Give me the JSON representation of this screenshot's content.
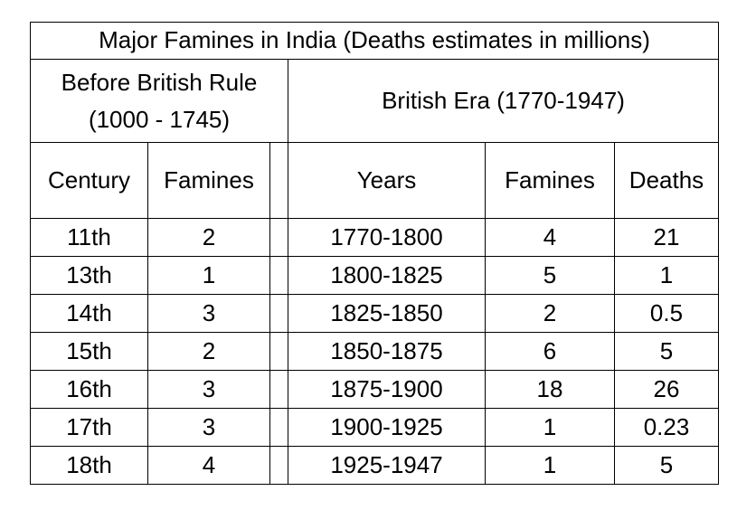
{
  "table": {
    "title": "Major Famines in India (Deaths estimates in millions)",
    "group_before": "Before British Rule (1000 - 1745)",
    "group_british": "British Era (1770-1947)",
    "headers": {
      "century": "Century",
      "famines_before": "Famines",
      "years": "Years",
      "famines_british": "Famines",
      "deaths": "Deaths"
    },
    "rows": [
      {
        "century": "11th",
        "famines_before": "2",
        "years": "1770-1800",
        "famines_british": "4",
        "deaths": "21"
      },
      {
        "century": "13th",
        "famines_before": "1",
        "years": "1800-1825",
        "famines_british": "5",
        "deaths": "1"
      },
      {
        "century": "14th",
        "famines_before": "3",
        "years": "1825-1850",
        "famines_british": "2",
        "deaths": "0.5"
      },
      {
        "century": "15th",
        "famines_before": "2",
        "years": "1850-1875",
        "famines_british": "6",
        "deaths": "5"
      },
      {
        "century": "16th",
        "famines_before": "3",
        "years": "1875-1900",
        "famines_british": "18",
        "deaths": "26"
      },
      {
        "century": "17th",
        "famines_before": "3",
        "years": "1900-1925",
        "famines_british": "1",
        "deaths": "0.23"
      },
      {
        "century": "18th",
        "famines_before": "4",
        "years": "1925-1947",
        "famines_british": "1",
        "deaths": "5"
      }
    ]
  }
}
